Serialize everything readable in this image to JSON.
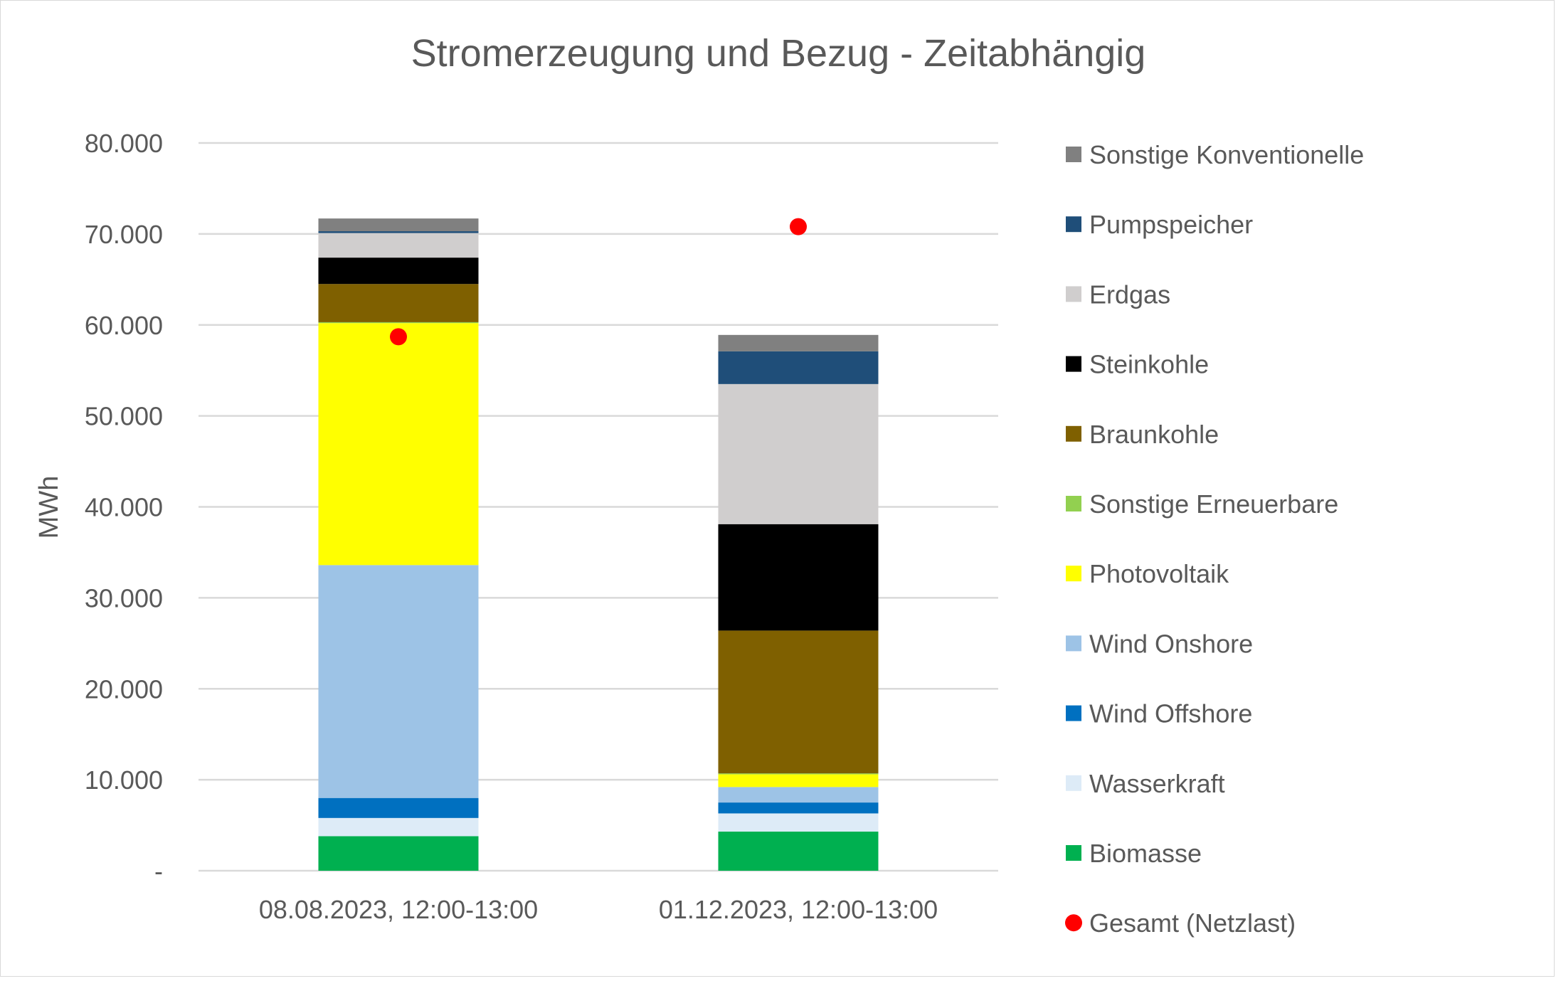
{
  "chart_data": {
    "type": "bar",
    "stacked": true,
    "title": "Stromerzeugung und Bezug - Zeitabhängig",
    "ylabel": "MWh",
    "xlabel": "",
    "ylim": [
      0,
      80000
    ],
    "yticks": [
      0,
      10000,
      20000,
      30000,
      40000,
      50000,
      60000,
      70000,
      80000
    ],
    "ytick_labels": [
      "-",
      "10.000",
      "20.000",
      "30.000",
      "40.000",
      "50.000",
      "60.000",
      "70.000",
      "80.000"
    ],
    "grid": true,
    "legend_position": "right",
    "categories": [
      "08.08.2023, 12:00-13:00",
      "01.12.2023, 12:00-13:00"
    ],
    "series": [
      {
        "name": "Biomasse",
        "color": "#00b050",
        "values": [
          3800,
          4300
        ]
      },
      {
        "name": "Wasserkraft",
        "color": "#ddebf7",
        "values": [
          2000,
          2000
        ]
      },
      {
        "name": "Wind Offshore",
        "color": "#0070c0",
        "values": [
          2200,
          1200
        ]
      },
      {
        "name": "Wind Onshore",
        "color": "#9dc3e6",
        "values": [
          25600,
          1700
        ]
      },
      {
        "name": "Photovoltaik",
        "color": "#ffff00",
        "values": [
          26600,
          1400
        ]
      },
      {
        "name": "Sonstige Erneuerbare",
        "color": "#92d050",
        "values": [
          100,
          100
        ]
      },
      {
        "name": "Braunkohle",
        "color": "#7f6000",
        "values": [
          4200,
          15700
        ]
      },
      {
        "name": "Steinkohle",
        "color": "#000000",
        "values": [
          2900,
          11700
        ]
      },
      {
        "name": "Erdgas",
        "color": "#d0cece",
        "values": [
          2700,
          15400
        ]
      },
      {
        "name": "Pumpspeicher",
        "color": "#1f4e79",
        "values": [
          200,
          3600
        ]
      },
      {
        "name": "Sonstige Konventionelle",
        "color": "#808080",
        "values": [
          1400,
          1800
        ]
      }
    ],
    "points": {
      "name": "Gesamt (Netzlast)",
      "color": "#ff0000",
      "values": [
        58700,
        70800
      ]
    }
  }
}
